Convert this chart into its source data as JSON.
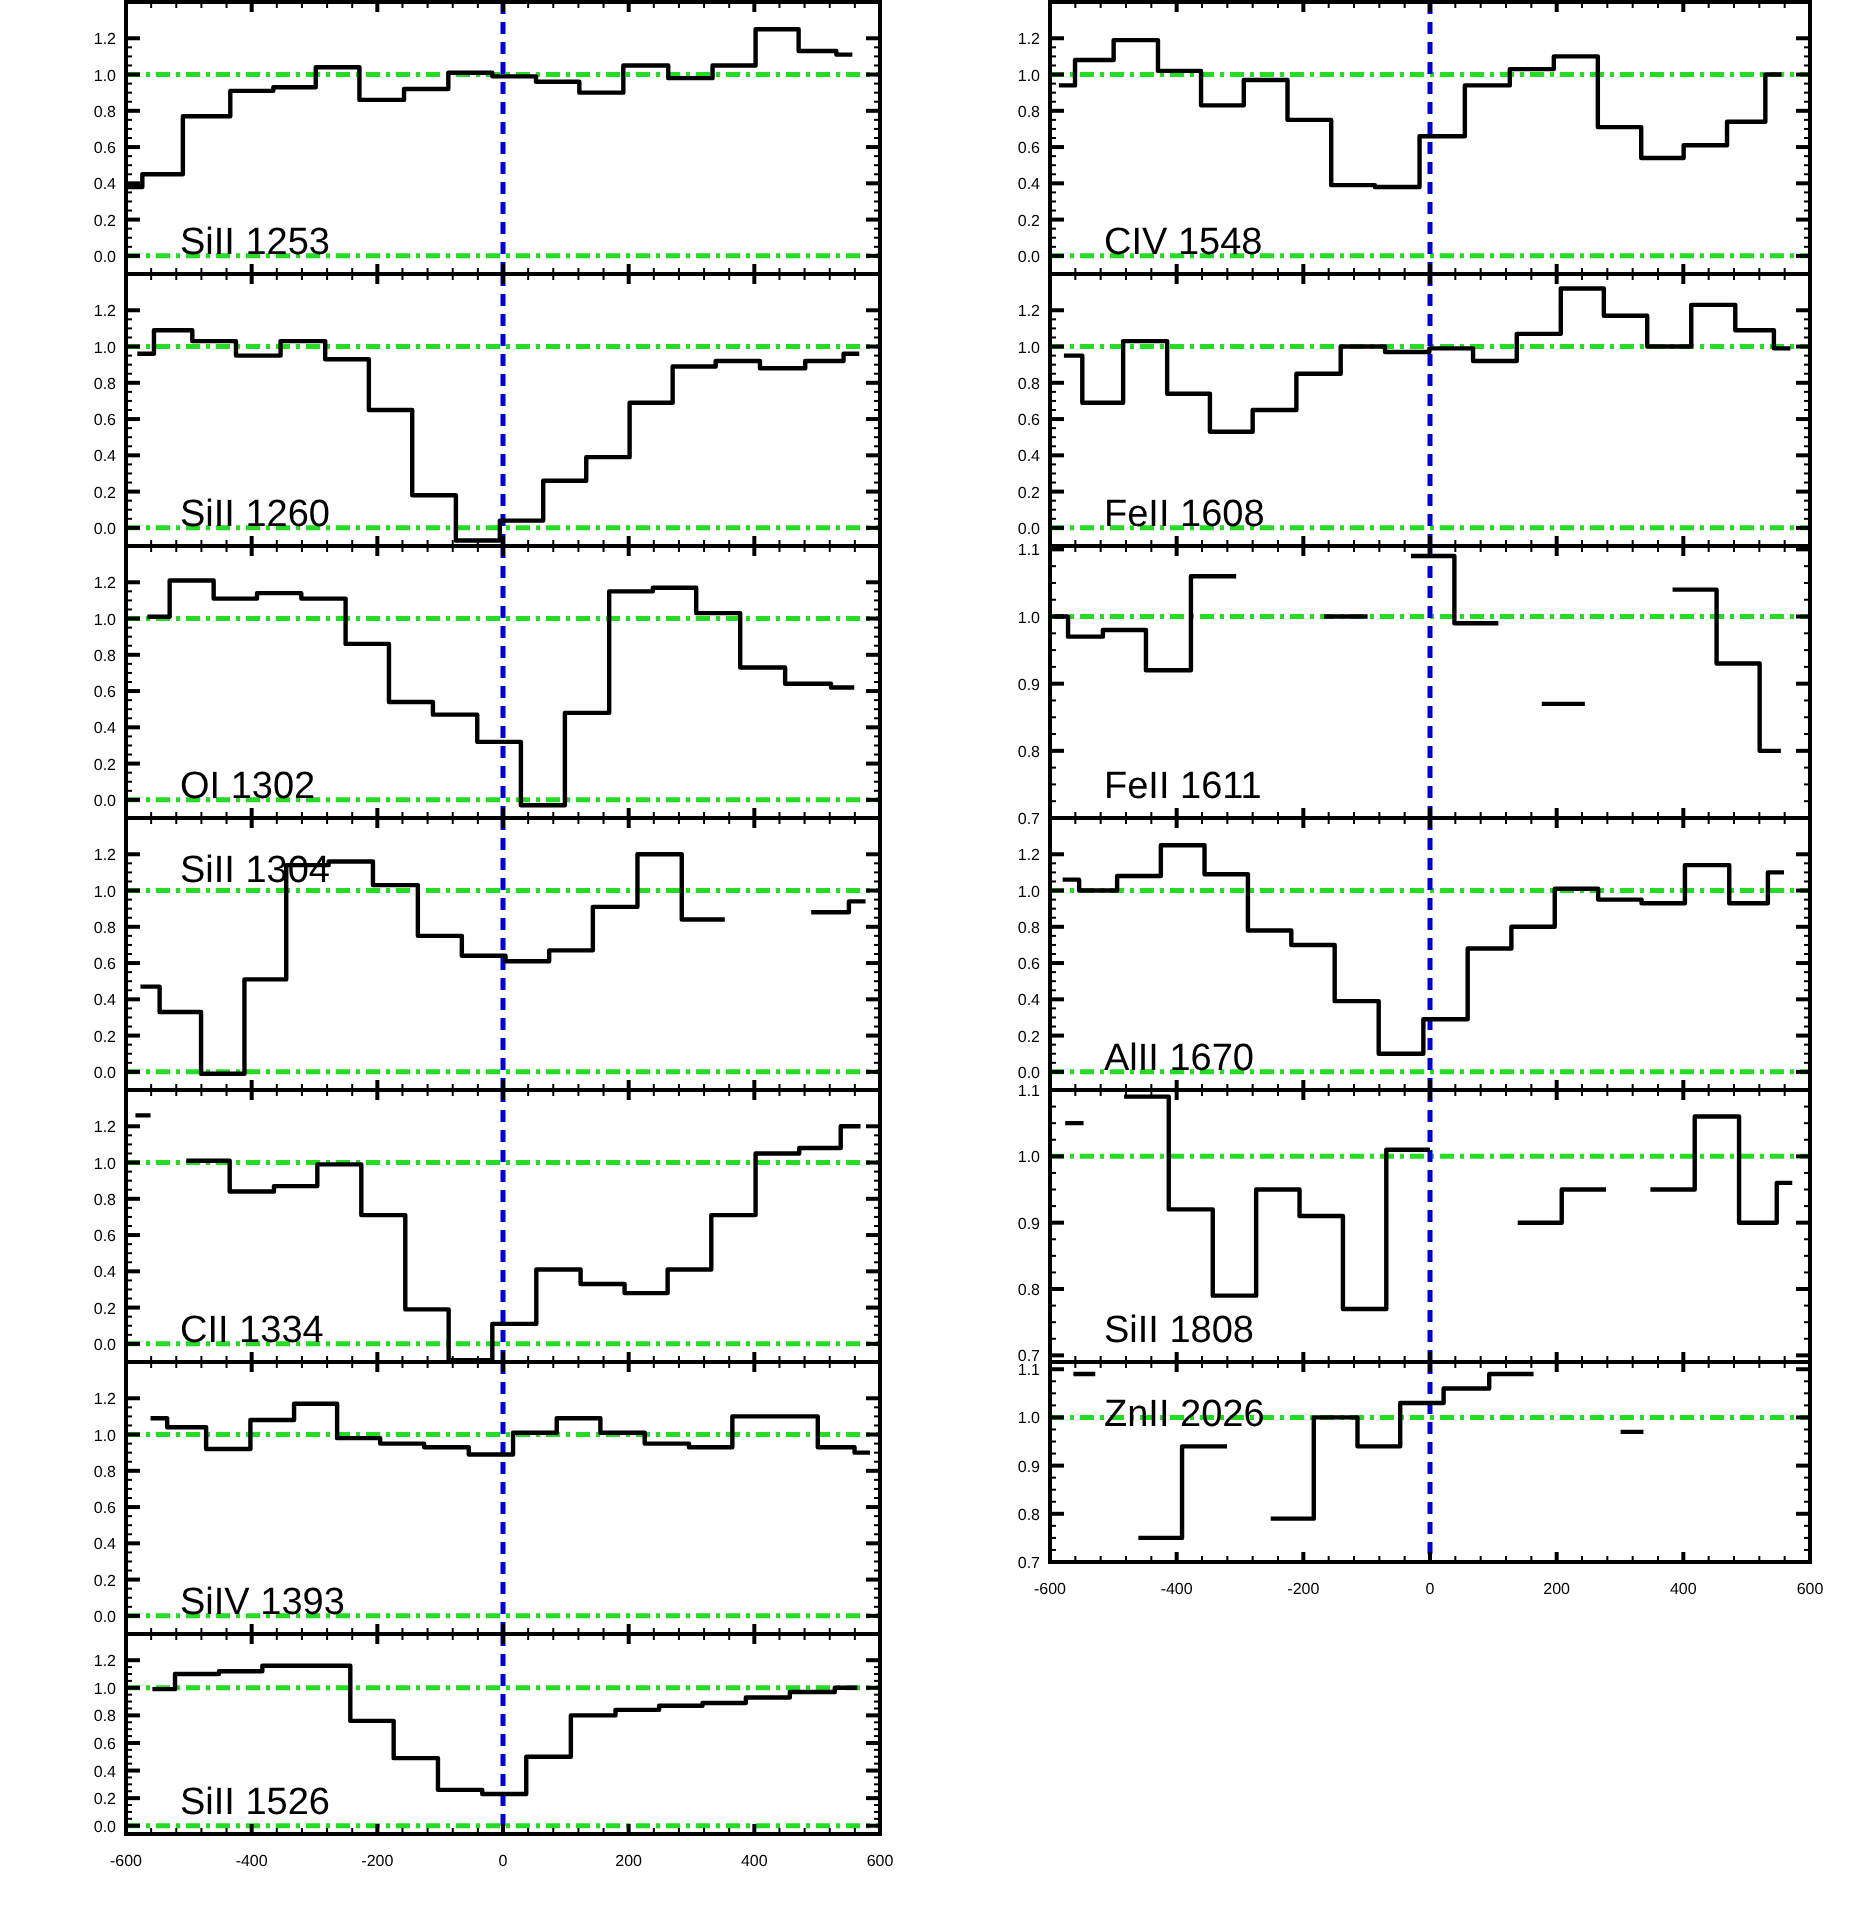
{
  "chart_data": [
    {
      "type": "step",
      "annotations": [
        "SiII 1253"
      ],
      "xlim": [
        -600,
        600
      ],
      "ylim": [
        -0.1,
        1.4
      ],
      "xticks": [
        -600,
        -400,
        -200,
        0,
        200,
        400,
        600
      ],
      "yticks": [
        {
          "value": 0,
          "label": "0.0"
        },
        {
          "value": 0.2,
          "label": "0.2"
        },
        {
          "value": 0.4,
          "label": "0.4"
        },
        {
          "value": 0.6,
          "label": "0.6"
        },
        {
          "value": 0.8,
          "label": "0.8"
        },
        {
          "value": 1,
          "label": "1.0"
        },
        {
          "value": 1.2,
          "label": "1.2"
        }
      ],
      "tick_labels": "y",
      "ref_lines": [
        {
          "axis": "y",
          "value": 1,
          "color": "#22dd22",
          "line_style": "dashdot"
        },
        {
          "axis": "y",
          "value": 0,
          "color": "#22dd22",
          "line_style": "dashdot"
        },
        {
          "axis": "x",
          "value": 0,
          "color": "#0000dd",
          "line_style": "dashed"
        }
      ],
      "series": [
        {
          "color": "#000000",
          "x": [
            -598,
            -550,
            -469,
            -399,
            -332,
            -264,
            -193,
            -122,
            -52,
            18,
            87,
            156,
            227,
            299,
            368,
            436,
            505,
            556
          ],
          "values": [
            0.38,
            0.45,
            0.77,
            0.91,
            0.93,
            1.04,
            0.86,
            0.92,
            1.01,
            0.99,
            0.96,
            0.9,
            1.05,
            0.98,
            1.05,
            1.25,
            1.13,
            1.11
          ]
        }
      ]
    },
    {
      "type": "step",
      "annotations": [
        "SiII 1260"
      ],
      "xlim": [
        -600,
        600
      ],
      "ylim": [
        -0.1,
        1.4
      ],
      "xticks": [
        -600,
        -400,
        -200,
        0,
        200,
        400,
        600
      ],
      "yticks": [
        {
          "value": 0,
          "label": "0.0"
        },
        {
          "value": 0.2,
          "label": "0.2"
        },
        {
          "value": 0.4,
          "label": "0.4"
        },
        {
          "value": 0.6,
          "label": "0.6"
        },
        {
          "value": 0.8,
          "label": "0.8"
        },
        {
          "value": 1,
          "label": "1.0"
        },
        {
          "value": 1.2,
          "label": "1.2"
        }
      ],
      "tick_labels": "y",
      "ref_lines": [
        {
          "axis": "y",
          "value": 1,
          "color": "#22dd22",
          "line_style": "dashdot"
        },
        {
          "axis": "y",
          "value": 0,
          "color": "#22dd22",
          "line_style": "dashdot"
        },
        {
          "axis": "x",
          "value": 0,
          "color": "#0000dd",
          "line_style": "dashed"
        }
      ],
      "series": [
        {
          "color": "#000000",
          "x": [
            -582,
            -529,
            -460,
            -390,
            -318,
            -248,
            -179,
            -110,
            -40,
            30,
            98,
            167,
            236,
            304,
            373,
            445,
            517,
            567
          ],
          "values": [
            0.96,
            1.09,
            1.03,
            0.95,
            1.03,
            0.93,
            0.65,
            0.18,
            -0.07,
            0.04,
            0.26,
            0.39,
            0.69,
            0.89,
            0.92,
            0.88,
            0.92,
            0.96
          ]
        }
      ]
    },
    {
      "type": "step",
      "annotations": [
        "OI 1302"
      ],
      "xlim": [
        -600,
        600
      ],
      "ylim": [
        -0.1,
        1.4
      ],
      "xticks": [
        -600,
        -400,
        -200,
        0,
        200,
        400,
        600
      ],
      "yticks": [
        {
          "value": 0,
          "label": "0.0"
        },
        {
          "value": 0.2,
          "label": "0.2"
        },
        {
          "value": 0.4,
          "label": "0.4"
        },
        {
          "value": 0.6,
          "label": "0.6"
        },
        {
          "value": 0.8,
          "label": "0.8"
        },
        {
          "value": 1,
          "label": "1.0"
        },
        {
          "value": 1.2,
          "label": "1.2"
        }
      ],
      "tick_labels": "y",
      "ref_lines": [
        {
          "axis": "y",
          "value": 1,
          "color": "#22dd22",
          "line_style": "dashdot"
        },
        {
          "axis": "y",
          "value": 0,
          "color": "#22dd22",
          "line_style": "dashdot"
        },
        {
          "axis": "x",
          "value": 0,
          "color": "#0000dd",
          "line_style": "dashed"
        }
      ],
      "series": [
        {
          "color": "#000000",
          "x": [
            -566,
            -495,
            -426,
            -357,
            -285,
            -216,
            -147,
            -76,
            -6,
            63,
            134,
            204,
            273,
            342,
            413,
            485,
            559
          ],
          "values": [
            1.01,
            1.21,
            1.11,
            1.14,
            1.11,
            0.86,
            0.54,
            0.47,
            0.32,
            -0.03,
            0.48,
            1.15,
            1.17,
            1.03,
            0.73,
            0.64,
            0.62
          ]
        }
      ]
    },
    {
      "type": "step",
      "annotations": [
        "SiII 1304"
      ],
      "xlim": [
        -600,
        600
      ],
      "ylim": [
        -0.1,
        1.4
      ],
      "xticks": [
        -600,
        -400,
        -200,
        0,
        200,
        400,
        600
      ],
      "yticks": [
        {
          "value": 0,
          "label": "0.0"
        },
        {
          "value": 0.2,
          "label": "0.2"
        },
        {
          "value": 0.4,
          "label": "0.4"
        },
        {
          "value": 0.6,
          "label": "0.6"
        },
        {
          "value": 0.8,
          "label": "0.8"
        },
        {
          "value": 1,
          "label": "1.0"
        },
        {
          "value": 1.2,
          "label": "1.2"
        }
      ],
      "tick_labels": "y",
      "ref_lines": [
        {
          "axis": "y",
          "value": 1,
          "color": "#22dd22",
          "line_style": "dashdot"
        },
        {
          "axis": "y",
          "value": 0,
          "color": "#22dd22",
          "line_style": "dashdot"
        },
        {
          "axis": "x",
          "value": 0,
          "color": "#0000dd",
          "line_style": "dashed"
        }
      ],
      "series": [
        {
          "color": "#000000",
          "x": [
            -577,
            -516,
            -445,
            -378,
            -312,
            -243,
            -171,
            -100,
            -31,
            39,
            108,
            178,
            250,
            319,
            387,
            457,
            524,
            577
          ],
          "values": [
            0.47,
            0.33,
            -0.01,
            0.51,
            1.14,
            1.16,
            1.03,
            0.75,
            0.64,
            0.61,
            0.67,
            0.91,
            1.2,
            0.84,
            null,
            null,
            0.88,
            0.94
          ]
        }
      ]
    },
    {
      "type": "step",
      "annotations": [
        "CII 1334"
      ],
      "xlim": [
        -600,
        600
      ],
      "ylim": [
        -0.1,
        1.4
      ],
      "xticks": [
        -600,
        -400,
        -200,
        0,
        200,
        400,
        600
      ],
      "yticks": [
        {
          "value": 0,
          "label": "0.0"
        },
        {
          "value": 0.2,
          "label": "0.2"
        },
        {
          "value": 0.4,
          "label": "0.4"
        },
        {
          "value": 0.6,
          "label": "0.6"
        },
        {
          "value": 0.8,
          "label": "0.8"
        },
        {
          "value": 1,
          "label": "1.0"
        },
        {
          "value": 1.2,
          "label": "1.2"
        }
      ],
      "tick_labels": "y",
      "ref_lines": [
        {
          "axis": "y",
          "value": 1,
          "color": "#22dd22",
          "line_style": "dashdot"
        },
        {
          "axis": "y",
          "value": 0,
          "color": "#22dd22",
          "line_style": "dashdot"
        },
        {
          "axis": "x",
          "value": 0,
          "color": "#0000dd",
          "line_style": "dashed"
        }
      ],
      "series": [
        {
          "color": "#000000",
          "x": [
            -585,
            -537,
            -471,
            -399,
            -330,
            -261,
            -190,
            -121,
            -52,
            18,
            88,
            159,
            228,
            296,
            367,
            437,
            506,
            569
          ],
          "values": [
            1.26,
            null,
            1.01,
            0.84,
            0.87,
            0.99,
            0.71,
            0.19,
            -0.09,
            0.11,
            0.41,
            0.33,
            0.28,
            0.41,
            0.71,
            1.05,
            1.08,
            1.2
          ]
        }
      ]
    },
    {
      "type": "step",
      "annotations": [
        "SiIV 1393"
      ],
      "xlim": [
        -600,
        600
      ],
      "ylim": [
        -0.1,
        1.4
      ],
      "xticks": [
        -600,
        -400,
        -200,
        0,
        200,
        400,
        600
      ],
      "yticks": [
        {
          "value": 0,
          "label": "0.0"
        },
        {
          "value": 0.2,
          "label": "0.2"
        },
        {
          "value": 0.4,
          "label": "0.4"
        },
        {
          "value": 0.6,
          "label": "0.6"
        },
        {
          "value": 0.8,
          "label": "0.8"
        },
        {
          "value": 1,
          "label": "1.0"
        },
        {
          "value": 1.2,
          "label": "1.2"
        }
      ],
      "tick_labels": "y",
      "ref_lines": [
        {
          "axis": "y",
          "value": 1,
          "color": "#22dd22",
          "line_style": "dashdot"
        },
        {
          "axis": "y",
          "value": 0,
          "color": "#22dd22",
          "line_style": "dashdot"
        },
        {
          "axis": "x",
          "value": 0,
          "color": "#0000dd",
          "line_style": "dashed"
        }
      ],
      "series": [
        {
          "color": "#000000",
          "x": [
            -561,
            -508,
            -437,
            -367,
            -298,
            -230,
            -161,
            -90,
            -19,
            51,
            120,
            190,
            261,
            331,
            399,
            467,
            535,
            584
          ],
          "values": [
            1.09,
            1.04,
            0.92,
            1.08,
            1.17,
            0.98,
            0.95,
            0.93,
            0.89,
            1.01,
            1.09,
            1.01,
            0.95,
            0.93,
            1.1,
            1.1,
            0.93,
            0.9
          ]
        }
      ]
    },
    {
      "type": "step",
      "annotations": [
        "SiII 1526"
      ],
      "xlim": [
        -600,
        600
      ],
      "ylim": [
        -0.06,
        1.39
      ],
      "xticks": [
        -600,
        -400,
        -200,
        0,
        200,
        400,
        600
      ],
      "yticks": [
        {
          "value": 0,
          "label": "0.0"
        },
        {
          "value": 0.2,
          "label": "0.2"
        },
        {
          "value": 0.4,
          "label": "0.4"
        },
        {
          "value": 0.6,
          "label": "0.6"
        },
        {
          "value": 0.8,
          "label": "0.8"
        },
        {
          "value": 1,
          "label": "1.0"
        },
        {
          "value": 1.2,
          "label": "1.2"
        }
      ],
      "ref_lines": [
        {
          "axis": "y",
          "value": 1,
          "color": "#22dd22",
          "line_style": "dashdot"
        },
        {
          "axis": "y",
          "value": 0,
          "color": "#22dd22",
          "line_style": "dashdot"
        },
        {
          "axis": "x",
          "value": 0,
          "color": "#0000dd",
          "line_style": "dashed"
        }
      ],
      "series": [
        {
          "color": "#000000",
          "x": [
            -558,
            -486,
            -418,
            -348,
            -277,
            -209,
            -139,
            -68,
            2,
            72,
            144,
            214,
            283,
            352,
            421,
            492,
            564
          ],
          "values": [
            0.99,
            1.1,
            1.12,
            1.16,
            1.16,
            0.76,
            0.49,
            0.26,
            0.23,
            0.5,
            0.8,
            0.84,
            0.87,
            0.89,
            0.93,
            0.97,
            1.0
          ]
        }
      ]
    },
    {
      "type": "step",
      "annotations": [
        "CIV 1548"
      ],
      "xlim": [
        -600,
        600
      ],
      "ylim": [
        -0.1,
        1.4
      ],
      "xticks": [
        -600,
        -400,
        -200,
        0,
        200,
        400,
        600
      ],
      "yticks": [
        {
          "value": 0,
          "label": "0.0"
        },
        {
          "value": 0.2,
          "label": "0.2"
        },
        {
          "value": 0.4,
          "label": "0.4"
        },
        {
          "value": 0.6,
          "label": "0.6"
        },
        {
          "value": 0.8,
          "label": "0.8"
        },
        {
          "value": 1,
          "label": "1.0"
        },
        {
          "value": 1.2,
          "label": "1.2"
        }
      ],
      "tick_labels": "y",
      "ref_lines": [
        {
          "axis": "y",
          "value": 1,
          "color": "#22dd22",
          "line_style": "dashdot"
        },
        {
          "axis": "y",
          "value": 0,
          "color": "#22dd22",
          "line_style": "dashdot"
        },
        {
          "axis": "x",
          "value": 0,
          "color": "#0000dd",
          "line_style": "dashed"
        }
      ],
      "series": [
        {
          "color": "#000000",
          "x": [
            -586,
            -535,
            -464,
            -395,
            -328,
            -260,
            -190,
            -122,
            -52,
            19,
            91,
            161,
            230,
            300,
            367,
            434,
            504,
            555
          ],
          "values": [
            0.94,
            1.08,
            1.19,
            1.02,
            0.83,
            0.97,
            0.75,
            0.39,
            0.38,
            0.66,
            0.94,
            1.03,
            1.1,
            0.71,
            0.54,
            0.61,
            0.74,
            1.0
          ]
        }
      ]
    },
    {
      "type": "step",
      "annotations": [
        "FeII 1608"
      ],
      "xlim": [
        -600,
        600
      ],
      "ylim": [
        -0.1,
        1.4
      ],
      "xticks": [
        -600,
        -400,
        -200,
        0,
        200,
        400,
        600
      ],
      "yticks": [
        {
          "value": 0,
          "label": "0.0"
        },
        {
          "value": 0.2,
          "label": "0.2"
        },
        {
          "value": 0.4,
          "label": "0.4"
        },
        {
          "value": 0.6,
          "label": "0.6"
        },
        {
          "value": 0.8,
          "label": "0.8"
        },
        {
          "value": 1,
          "label": "1.0"
        },
        {
          "value": 1.2,
          "label": "1.2"
        }
      ],
      "tick_labels": "y",
      "ref_lines": [
        {
          "axis": "y",
          "value": 1,
          "color": "#22dd22",
          "line_style": "dashdot"
        },
        {
          "axis": "y",
          "value": 0,
          "color": "#22dd22",
          "line_style": "dashdot"
        },
        {
          "axis": "x",
          "value": 0,
          "color": "#0000dd",
          "line_style": "dashed"
        }
      ],
      "series": [
        {
          "color": "#000000",
          "x": [
            -578,
            -520,
            -449,
            -381,
            -314,
            -246,
            -176,
            -106,
            -36,
            34,
            102,
            172,
            241,
            308,
            378,
            447,
            517,
            569
          ],
          "values": [
            0.95,
            0.69,
            1.03,
            0.74,
            0.53,
            0.65,
            0.85,
            1.0,
            0.97,
            0.99,
            0.92,
            1.07,
            1.32,
            1.17,
            1.0,
            1.23,
            1.09,
            0.99
          ]
        }
      ]
    },
    {
      "type": "step",
      "annotations": [
        "FeII 1611"
      ],
      "xlim": [
        -600,
        600
      ],
      "ylim": [
        0.7,
        1.105
      ],
      "xticks": [
        -600,
        -400,
        -200,
        0,
        200,
        400,
        600
      ],
      "yticks": [
        {
          "value": 0.7,
          "label": "0.7"
        },
        {
          "value": 0.8,
          "label": "0.8"
        },
        {
          "value": 0.9,
          "label": "0.9"
        },
        {
          "value": 1,
          "label": "1.0"
        },
        {
          "value": 1.1,
          "label": "1.1"
        }
      ],
      "tick_labels": "y",
      "ref_lines": [
        {
          "axis": "y",
          "value": 1,
          "color": "#22dd22",
          "line_style": "dashdot"
        },
        {
          "axis": "x",
          "value": 0,
          "color": "#0000dd",
          "line_style": "dashed"
        }
      ],
      "series": [
        {
          "color": "#000000",
          "x": [
            -593,
            -550,
            -483,
            -414,
            -341,
            -271,
            -202,
            -133,
            -64,
            4,
            73,
            143,
            210,
            279,
            348,
            418,
            487,
            554
          ],
          "values": [
            1.0,
            0.97,
            0.98,
            0.92,
            1.06,
            null,
            null,
            1.0,
            null,
            1.09,
            0.99,
            null,
            0.87,
            null,
            null,
            1.04,
            0.93,
            0.8
          ]
        }
      ]
    },
    {
      "type": "step",
      "annotations": [
        "AlII 1670"
      ],
      "xlim": [
        -600,
        600
      ],
      "ylim": [
        -0.1,
        1.4
      ],
      "xticks": [
        -600,
        -400,
        -200,
        0,
        200,
        400,
        600
      ],
      "yticks": [
        {
          "value": 0,
          "label": "0.0"
        },
        {
          "value": 0.2,
          "label": "0.2"
        },
        {
          "value": 0.4,
          "label": "0.4"
        },
        {
          "value": 0.6,
          "label": "0.6"
        },
        {
          "value": 0.8,
          "label": "0.8"
        },
        {
          "value": 1,
          "label": "1.0"
        },
        {
          "value": 1.2,
          "label": "1.2"
        }
      ],
      "tick_labels": "y",
      "ref_lines": [
        {
          "axis": "y",
          "value": 1,
          "color": "#22dd22",
          "line_style": "dashdot"
        },
        {
          "axis": "y",
          "value": 0,
          "color": "#22dd22",
          "line_style": "dashdot"
        },
        {
          "axis": "x",
          "value": 0,
          "color": "#0000dd",
          "line_style": "dashed"
        }
      ],
      "series": [
        {
          "color": "#000000",
          "x": [
            -580,
            -528,
            -460,
            -390,
            -322,
            -253,
            -185,
            -116,
            -46,
            25,
            94,
            163,
            231,
            300,
            368,
            437,
            508,
            559
          ],
          "values": [
            1.06,
            1.0,
            1.08,
            1.25,
            1.09,
            0.78,
            0.7,
            0.39,
            0.1,
            0.29,
            0.68,
            0.8,
            1.01,
            0.95,
            0.93,
            1.14,
            0.93,
            1.1
          ]
        }
      ]
    },
    {
      "type": "step",
      "annotations": [
        "SiII 1808"
      ],
      "xlim": [
        -600,
        600
      ],
      "ylim": [
        0.69,
        1.1
      ],
      "xticks": [
        -600,
        -400,
        -200,
        0,
        200,
        400,
        600
      ],
      "yticks": [
        {
          "value": 0.7,
          "label": "0.7"
        },
        {
          "value": 0.8,
          "label": "0.8"
        },
        {
          "value": 0.9,
          "label": "0.9"
        },
        {
          "value": 1,
          "label": "1.0"
        },
        {
          "value": 1.1,
          "label": "1.1"
        }
      ],
      "tick_labels": "y",
      "ref_lines": [
        {
          "axis": "y",
          "value": 1,
          "color": "#22dd22",
          "line_style": "dashdot"
        },
        {
          "axis": "x",
          "value": 0,
          "color": "#0000dd",
          "line_style": "dashed"
        }
      ],
      "series": [
        {
          "color": "#000000",
          "x": [
            -576,
            -518,
            -448,
            -377,
            -309,
            -240,
            -172,
            -103,
            -35,
            35,
            104,
            173,
            243,
            313,
            383,
            453,
            523,
            572
          ],
          "values": [
            1.05,
            null,
            1.09,
            0.92,
            0.79,
            0.95,
            0.91,
            0.77,
            1.01,
            null,
            null,
            0.9,
            0.95,
            null,
            0.95,
            1.06,
            0.9,
            0.96
          ]
        }
      ]
    },
    {
      "type": "step",
      "annotations": [
        "ZnII 2026"
      ],
      "xlim": [
        -600,
        600
      ],
      "ylim": [
        0.7,
        1.115
      ],
      "xticks": [
        -600,
        -400,
        -200,
        0,
        200,
        400,
        600
      ],
      "yticks": [
        {
          "value": 0.7,
          "label": "0.7"
        },
        {
          "value": 0.8,
          "label": "0.8"
        },
        {
          "value": 0.9,
          "label": "0.9"
        },
        {
          "value": 1,
          "label": "1.0"
        },
        {
          "value": 1.1,
          "label": "1.1"
        }
      ],
      "ref_lines": [
        {
          "axis": "y",
          "value": 1,
          "color": "#22dd22",
          "line_style": "dashdot"
        },
        {
          "axis": "x",
          "value": 0,
          "color": "#0000dd",
          "line_style": "dashed"
        }
      ],
      "series": [
        {
          "color": "#000000",
          "x": [
            -563,
            -494,
            -427,
            -356,
            -285,
            -218,
            -149,
            -80,
            -14,
            57,
            130,
            197,
            265,
            337
          ],
          "values": [
            1.09,
            null,
            0.75,
            0.94,
            null,
            0.79,
            1.0,
            0.94,
            1.03,
            1.06,
            1.09,
            null,
            null,
            0.97
          ]
        }
      ]
    }
  ]
}
